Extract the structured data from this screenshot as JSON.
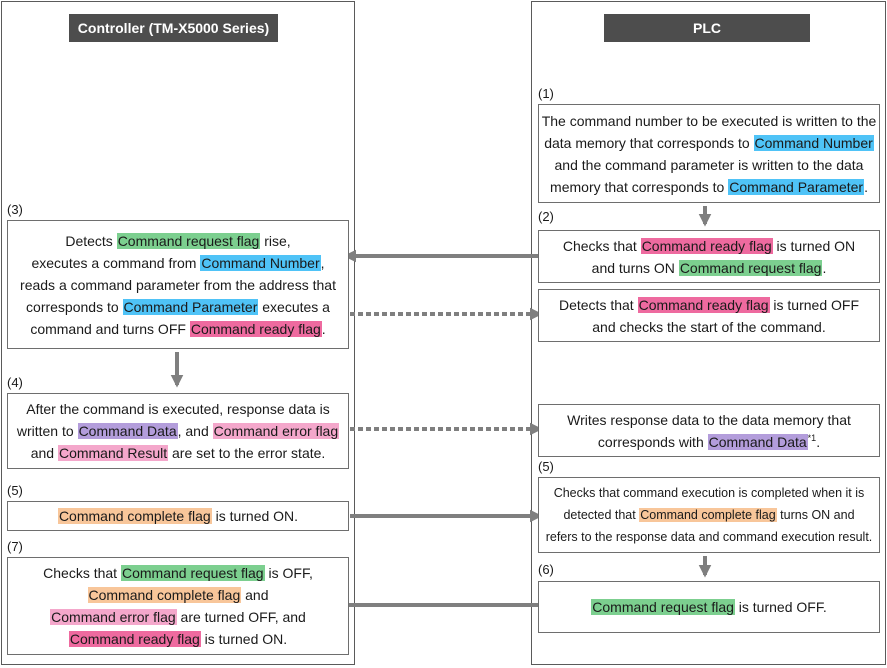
{
  "headers": {
    "controller": "Controller (TM-X5000 Series)",
    "plc": "PLC"
  },
  "steps": {
    "p1": {
      "num": "(1)",
      "l1": "The command number to be executed is written to the",
      "l2a": "data memory that corresponds to ",
      "l2h": "Command Number",
      "l3": "and the command parameter is written to the data",
      "l4a": "memory that corresponds to ",
      "l4h": "Command Parameter",
      "l4b": "."
    },
    "p2": {
      "num": "(2)",
      "l1a": "Checks that ",
      "l1h": "Command ready flag",
      "l1b": " is turned ON",
      "l2a": "and turns ON ",
      "l2h": "Command request flag",
      "l2b": "."
    },
    "p2b": {
      "l1a": "Detects that ",
      "l1h": "Command ready flag",
      "l1b": " is turned OFF",
      "l2": "and checks the start of the command."
    },
    "c3": {
      "num": "(3)",
      "l1a": "Detects ",
      "l1h": "Command request flag",
      "l1b": " rise,",
      "l2a": "executes a command from ",
      "l2h": "Command Number",
      "l2b": ",",
      "l3": "reads a command parameter from the address that",
      "l4a": "corresponds to ",
      "l4h": "Command Parameter",
      "l4b": " executes a",
      "l5a": "command and turns OFF ",
      "l5h": "Command ready flag",
      "l5b": "."
    },
    "c4": {
      "num": "(4)",
      "l1": "After the command is executed, response data is",
      "l2a": "written to ",
      "l2h1": "Command Data",
      "l2b": ", and ",
      "l2h2": "Command error flag",
      "l3a": "and ",
      "l3h": "Command Result",
      "l3b": " are set to the error state."
    },
    "p4": {
      "l1": "Writes response data to the data memory that",
      "l2a": "corresponds with ",
      "l2h": "Command Data",
      "l2sup": "*1",
      "l2b": "."
    },
    "c5": {
      "num": "(5)",
      "h": "Command complete flag",
      "b": " is turned ON."
    },
    "p5": {
      "num": "(5)",
      "l1": "Checks that command execution is completed when it is",
      "l2a": "detected that ",
      "l2h": "Command complete flag",
      "l2b": " turns ON and",
      "l3": "refers to the response data and command execution result."
    },
    "c7": {
      "num": "(7)",
      "l1a": "Checks that ",
      "l1h": "Command request flag",
      "l1b": " is OFF,",
      "l2h": "Command complete flag",
      "l2b": " and",
      "l3h": "Command error flag",
      "l3b": " are turned OFF, and",
      "l4h": "Command ready flag",
      "l4b": " is turned ON."
    },
    "p6": {
      "num": "(6)",
      "h": "Command request flag",
      "b": " is turned OFF."
    }
  },
  "colors": {
    "command_number": "#4fc3f7",
    "command_request_flag": "#7ccf8f",
    "command_ready_flag": "#ee6a9f",
    "command_error_flag": "#f4a7cb",
    "command_data": "#b39ddb",
    "command_complete_flag": "#f8c69a",
    "arrow": "#7f7f7f"
  }
}
